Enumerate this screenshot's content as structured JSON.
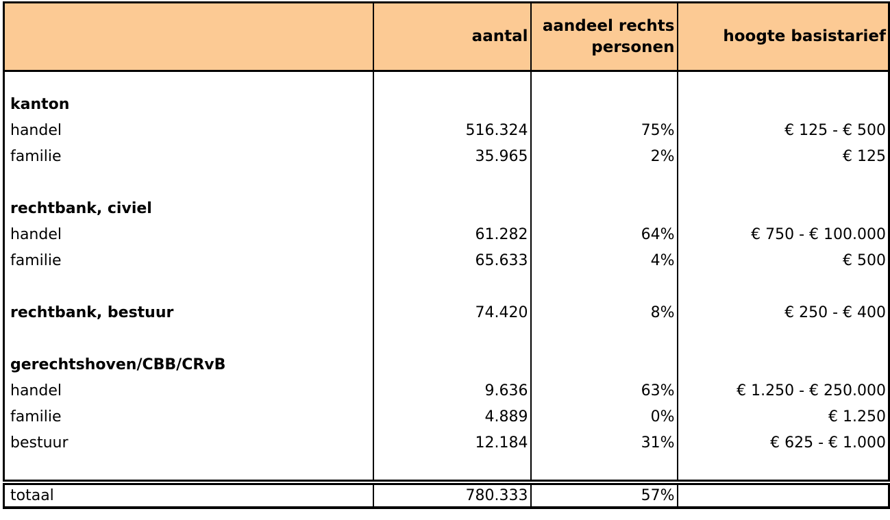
{
  "colors": {
    "header_bg": "#FCCA94",
    "border": "#000000",
    "text": "#000000",
    "background": "#FFFFFF"
  },
  "table": {
    "header": {
      "category": "",
      "aantal": "aantal",
      "aandeel_line1": "aandeel rechts",
      "aandeel_line2": "personen",
      "tarief": "hoogte basistarief"
    },
    "rows": [
      {
        "type": "blank",
        "label": "",
        "aantal": "",
        "aandeel": "",
        "tarief": ""
      },
      {
        "type": "section",
        "label": "kanton",
        "aantal": "",
        "aandeel": "",
        "tarief": ""
      },
      {
        "type": "data",
        "label": "handel",
        "aantal": "516.324",
        "aandeel": "75%",
        "tarief": "€ 125 - € 500"
      },
      {
        "type": "data",
        "label": "familie",
        "aantal": "35.965",
        "aandeel": "2%",
        "tarief": "€ 125"
      },
      {
        "type": "blank",
        "label": "",
        "aantal": "",
        "aandeel": "",
        "tarief": ""
      },
      {
        "type": "section",
        "label": "rechtbank, civiel",
        "aantal": "",
        "aandeel": "",
        "tarief": ""
      },
      {
        "type": "data",
        "label": "handel",
        "aantal": "61.282",
        "aandeel": "64%",
        "tarief": "€ 750 - € 100.000"
      },
      {
        "type": "data",
        "label": "familie",
        "aantal": "65.633",
        "aandeel": "4%",
        "tarief": "€ 500"
      },
      {
        "type": "blank",
        "label": "",
        "aantal": "",
        "aandeel": "",
        "tarief": ""
      },
      {
        "type": "section-data",
        "label": "rechtbank, bestuur",
        "aantal": "74.420",
        "aandeel": "8%",
        "tarief": "€ 250 - € 400"
      },
      {
        "type": "blank",
        "label": "",
        "aantal": "",
        "aandeel": "",
        "tarief": ""
      },
      {
        "type": "section",
        "label": "gerechtshoven/CBB/CRvB",
        "aantal": "",
        "aandeel": "",
        "tarief": ""
      },
      {
        "type": "data",
        "label": "handel",
        "aantal": "9.636",
        "aandeel": "63%",
        "tarief": "€ 1.250 - € 250.000"
      },
      {
        "type": "data",
        "label": "familie",
        "aantal": "4.889",
        "aandeel": "0%",
        "tarief": "€ 1.250"
      },
      {
        "type": "data",
        "label": "bestuur",
        "aantal": "12.184",
        "aandeel": "31%",
        "tarief": "€ 625 - € 1.000"
      },
      {
        "type": "blank",
        "label": "",
        "aantal": "",
        "aandeel": "",
        "tarief": ""
      }
    ],
    "total": {
      "label": "totaal",
      "aantal": "780.333",
      "aandeel": "57%",
      "tarief": ""
    }
  },
  "chart_data": {
    "type": "table",
    "columns": [
      "",
      "aantal",
      "aandeel rechtspersonen",
      "hoogte basistarief"
    ],
    "rows": [
      [
        "kanton",
        null,
        null,
        null
      ],
      [
        "handel",
        516324,
        "75%",
        "€ 125 - € 500"
      ],
      [
        "familie",
        35965,
        "2%",
        "€ 125"
      ],
      [
        "rechtbank, civiel",
        null,
        null,
        null
      ],
      [
        "handel",
        61282,
        "64%",
        "€ 750 - € 100.000"
      ],
      [
        "familie",
        65633,
        "4%",
        "€ 500"
      ],
      [
        "rechtbank, bestuur",
        74420,
        "8%",
        "€ 250 - € 400"
      ],
      [
        "gerechtshoven/CBB/CRvB",
        null,
        null,
        null
      ],
      [
        "handel",
        9636,
        "63%",
        "€ 1.250 - € 250.000"
      ],
      [
        "familie",
        4889,
        "0%",
        "€ 1.250"
      ],
      [
        "bestuur",
        12184,
        "31%",
        "€ 625 - € 1.000"
      ],
      [
        "totaal",
        780333,
        "57%",
        null
      ]
    ],
    "notes": "number format uses dot as thousands separator (Dutch)"
  }
}
